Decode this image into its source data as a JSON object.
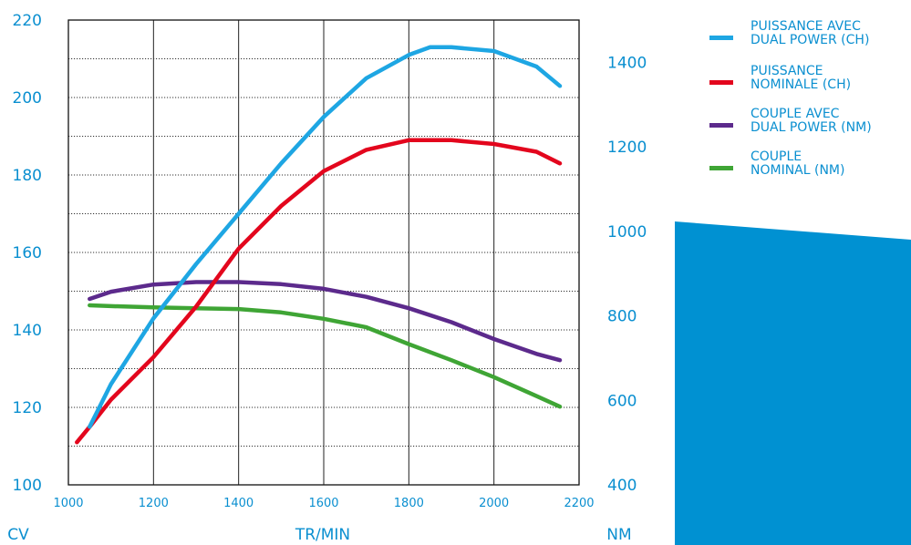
{
  "chart_data": {
    "type": "line",
    "x_axis": {
      "label": "TR/MIN",
      "range": [
        1000,
        2200
      ],
      "ticks": [
        "1000",
        "1200",
        "1400",
        "1600",
        "1800",
        "2000",
        "2200"
      ]
    },
    "y_left": {
      "unit": "CV",
      "range": [
        100,
        220
      ],
      "ticks": [
        "100",
        "120",
        "140",
        "160",
        "180",
        "200",
        "220"
      ]
    },
    "y_right": {
      "unit": "NM",
      "range": [
        400,
        1500
      ],
      "ticks": [
        "400",
        "600",
        "800",
        "1000",
        "1200",
        "1400"
      ]
    },
    "grid": "vertical solid, horizontal dotted",
    "legend_position": "top-right",
    "series": [
      {
        "name": "PUISSANCE AVEC DUAL POWER (CH)",
        "legend_lines": [
          "PUISSANCE AVEC",
          "DUAL POWER (CH)"
        ],
        "axis": "left",
        "color": "#1ea6e3",
        "points": [
          [
            1050,
            115
          ],
          [
            1100,
            126
          ],
          [
            1200,
            143
          ],
          [
            1300,
            157
          ],
          [
            1400,
            170
          ],
          [
            1500,
            183
          ],
          [
            1600,
            195
          ],
          [
            1700,
            205
          ],
          [
            1800,
            211
          ],
          [
            1850,
            213
          ],
          [
            1900,
            213
          ],
          [
            2000,
            212
          ],
          [
            2100,
            208
          ],
          [
            2155,
            203
          ]
        ]
      },
      {
        "name": "PUISSANCE NOMINALE (CH)",
        "legend_lines": [
          "PUISSANCE",
          "NOMINALE (CH)"
        ],
        "axis": "left",
        "color": "#e3061d",
        "points": [
          [
            1020,
            111
          ],
          [
            1050,
            115
          ],
          [
            1100,
            122
          ],
          [
            1200,
            133
          ],
          [
            1300,
            146
          ],
          [
            1400,
            161
          ],
          [
            1500,
            172
          ],
          [
            1600,
            181
          ],
          [
            1700,
            186.5
          ],
          [
            1800,
            189
          ],
          [
            1900,
            189
          ],
          [
            2000,
            188
          ],
          [
            2100,
            186
          ],
          [
            2155,
            183
          ]
        ]
      },
      {
        "name": "COUPLE AVEC DUAL POWER (NM)",
        "legend_lines": [
          "COUPLE AVEC",
          "DUAL POWER (NM)"
        ],
        "axis": "right",
        "color": "#5c2a8c",
        "points": [
          [
            1050,
            840
          ],
          [
            1100,
            857
          ],
          [
            1200,
            874
          ],
          [
            1300,
            880
          ],
          [
            1400,
            880
          ],
          [
            1500,
            875
          ],
          [
            1600,
            864
          ],
          [
            1700,
            845
          ],
          [
            1800,
            818
          ],
          [
            1900,
            785
          ],
          [
            2000,
            745
          ],
          [
            2100,
            710
          ],
          [
            2155,
            695
          ]
        ]
      },
      {
        "name": "COUPLE NOMINAL (NM)",
        "legend_lines": [
          "COUPLE",
          "NOMINAL (NM)"
        ],
        "axis": "right",
        "color": "#3fa535",
        "points": [
          [
            1050,
            825
          ],
          [
            1100,
            823
          ],
          [
            1200,
            820
          ],
          [
            1300,
            818
          ],
          [
            1400,
            816
          ],
          [
            1500,
            808
          ],
          [
            1600,
            793
          ],
          [
            1700,
            773
          ],
          [
            1800,
            733
          ],
          [
            1900,
            695
          ],
          [
            2000,
            655
          ],
          [
            2100,
            610
          ],
          [
            2155,
            585
          ]
        ]
      }
    ]
  }
}
